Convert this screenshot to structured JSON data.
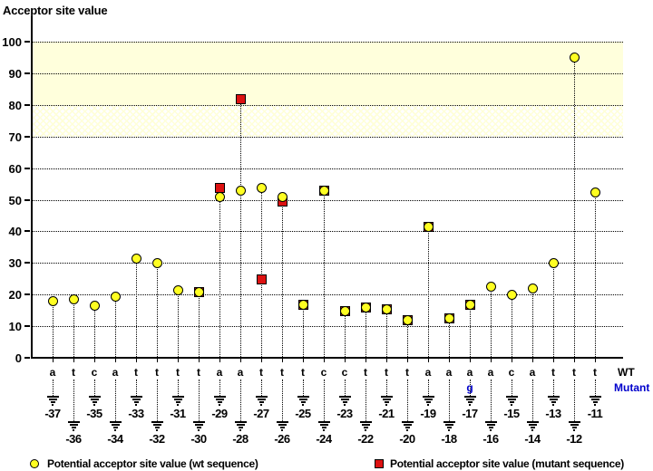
{
  "title": "Acceptor site value",
  "axis_side_labels": {
    "wt": "WT",
    "mutant": "Mutant"
  },
  "legend": {
    "wt_label": "Potential acceptor site value (wt sequence)",
    "mutant_label": "Potential acceptor site value (mutant sequence)"
  },
  "colors": {
    "wt_marker": "#ffff22",
    "mutant_marker": "#dd1111",
    "band": "#ffffdc",
    "mutant_text": "#0000cc"
  },
  "chart_data": {
    "type": "scatter",
    "title": "Acceptor site value",
    "ylabel": "Acceptor site value",
    "xlabel": "",
    "ylim": [
      0,
      108
    ],
    "yticks": [
      0,
      10,
      20,
      30,
      40,
      50,
      60,
      70,
      80,
      90,
      100
    ],
    "grid": "horizontal-dotted",
    "bands": [
      {
        "from": 80,
        "to": 100,
        "style": "solid"
      },
      {
        "from": 70,
        "to": 80,
        "style": "crosshatch"
      }
    ],
    "positions": [
      -37,
      -36,
      -35,
      -34,
      -33,
      -32,
      -31,
      -30,
      -29,
      -28,
      -27,
      -26,
      -25,
      -24,
      -23,
      -22,
      -21,
      -20,
      -19,
      -18,
      -17,
      -16,
      -15,
      -14,
      -13,
      -12,
      -11
    ],
    "wt_sequence": [
      "a",
      "t",
      "c",
      "a",
      "t",
      "t",
      "t",
      "t",
      "a",
      "a",
      "t",
      "t",
      "t",
      "c",
      "c",
      "t",
      "t",
      "t",
      "a",
      "a",
      "a",
      "a",
      "c",
      "a",
      "t",
      "t",
      "t"
    ],
    "mutant_sequence_changes": [
      null,
      null,
      null,
      null,
      null,
      null,
      null,
      null,
      null,
      null,
      null,
      null,
      null,
      null,
      null,
      null,
      null,
      null,
      null,
      null,
      "g",
      null,
      null,
      null,
      null,
      null,
      null
    ],
    "series": [
      {
        "name": "Potential acceptor site value (wt sequence)",
        "marker": "circle",
        "color": "#ffff22",
        "values": [
          18,
          18.5,
          16.5,
          19.5,
          31.5,
          30,
          21.5,
          21,
          51,
          53,
          54,
          51,
          17,
          53,
          15,
          16,
          15.5,
          12,
          41.5,
          12.5,
          17,
          22.5,
          20,
          22,
          30,
          95,
          52.5
        ]
      },
      {
        "name": "Potential acceptor site value (mutant sequence)",
        "marker": "square",
        "color": "#dd1111",
        "values": [
          null,
          null,
          null,
          null,
          null,
          null,
          null,
          21,
          54,
          82,
          25,
          49.5,
          17,
          53,
          15,
          16,
          15.5,
          12,
          41.5,
          12.5,
          17,
          null,
          null,
          null,
          null,
          null,
          null
        ]
      }
    ],
    "legend_position": "bottom"
  }
}
